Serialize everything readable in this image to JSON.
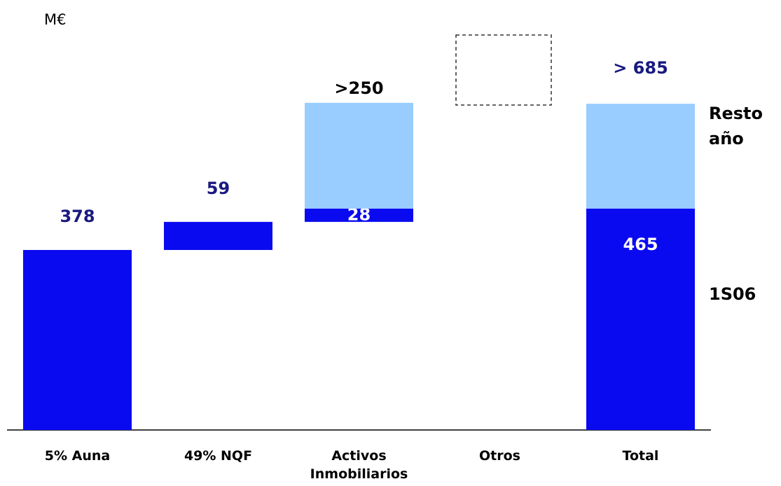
{
  "chart_data": {
    "type": "waterfall",
    "unit_label": "M€",
    "categories": [
      "5% Auna",
      "49% NQF",
      "Activos Inmobiliarios",
      "Otros",
      "Total"
    ],
    "series": [
      {
        "name": "1S06",
        "color": "#0a0af0",
        "values": [
          378,
          59,
          28,
          null,
          465
        ]
      },
      {
        "name": "Resto año",
        "color": "#99ccff",
        "values": [
          null,
          null,
          222,
          null,
          220
        ]
      }
    ],
    "totals": [
      null,
      null,
      250,
      null,
      685
    ],
    "total_labels": [
      null,
      null,
      ">250",
      null,
      "> 685"
    ],
    "ylim": [
      0,
      850
    ]
  }
}
